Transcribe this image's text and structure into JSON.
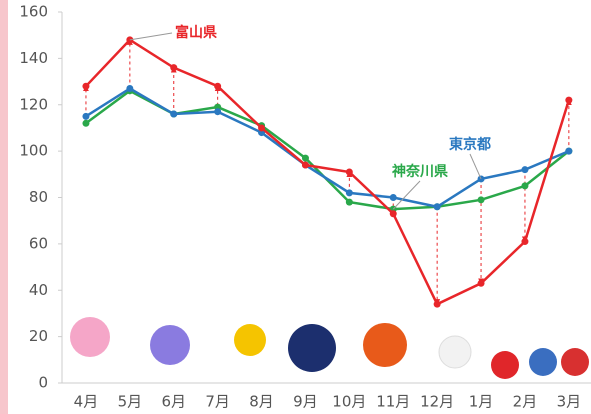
{
  "chart_data": {
    "type": "line",
    "categories": [
      "4月",
      "5月",
      "6月",
      "7月",
      "8月",
      "9月",
      "10月",
      "11月",
      "12月",
      "1月",
      "2月",
      "3月"
    ],
    "series": [
      {
        "name": "富山県",
        "color": "#e8262a",
        "values": [
          128,
          148,
          136,
          128,
          110,
          94,
          91,
          73,
          34,
          43,
          61,
          122
        ]
      },
      {
        "name": "東京都",
        "color": "#2a78c0",
        "values": [
          115,
          127,
          116,
          117,
          108,
          94,
          82,
          80,
          76,
          88,
          92,
          100
        ]
      },
      {
        "name": "神奈川県",
        "color": "#2aa84a",
        "values": [
          112,
          126,
          116,
          119,
          111,
          97,
          78,
          75,
          76,
          79,
          85,
          100
        ]
      }
    ],
    "ylim": [
      0,
      160
    ],
    "yticks": [
      0,
      20,
      40,
      60,
      80,
      100,
      120,
      140,
      160
    ],
    "grid": false
  }
}
